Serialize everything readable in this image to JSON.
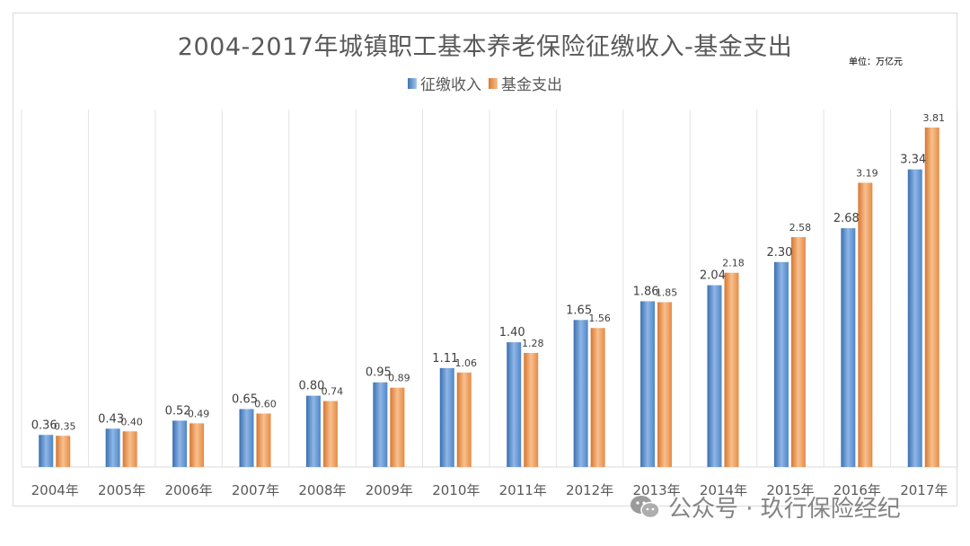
{
  "chart_data": {
    "type": "bar",
    "title": "2004-2017年城镇职工基本养老保险征缴收入-基金支出",
    "unit_label": "单位：万亿元",
    "categories": [
      "2004年",
      "2005年",
      "2006年",
      "2007年",
      "2008年",
      "2009年",
      "2010年",
      "2011年",
      "2012年",
      "2013年",
      "2014年",
      "2015年",
      "2016年",
      "2017年"
    ],
    "series": [
      {
        "name": "征缴收入",
        "values": [
          0.36,
          0.43,
          0.52,
          0.65,
          0.8,
          0.95,
          1.11,
          1.4,
          1.65,
          1.86,
          2.04,
          2.3,
          2.68,
          3.34
        ],
        "color": "#5b9bd5"
      },
      {
        "name": "基金支出",
        "values": [
          0.35,
          0.4,
          0.49,
          0.6,
          0.74,
          0.89,
          1.06,
          1.28,
          1.56,
          1.85,
          2.18,
          2.58,
          3.19,
          3.81
        ],
        "color": "#ed7d31"
      }
    ],
    "ylim": [
      0,
      4.0
    ],
    "grid": "vertical",
    "legend": "top-center"
  },
  "watermark": {
    "text": "公众号 · 玖行保险经纪"
  }
}
